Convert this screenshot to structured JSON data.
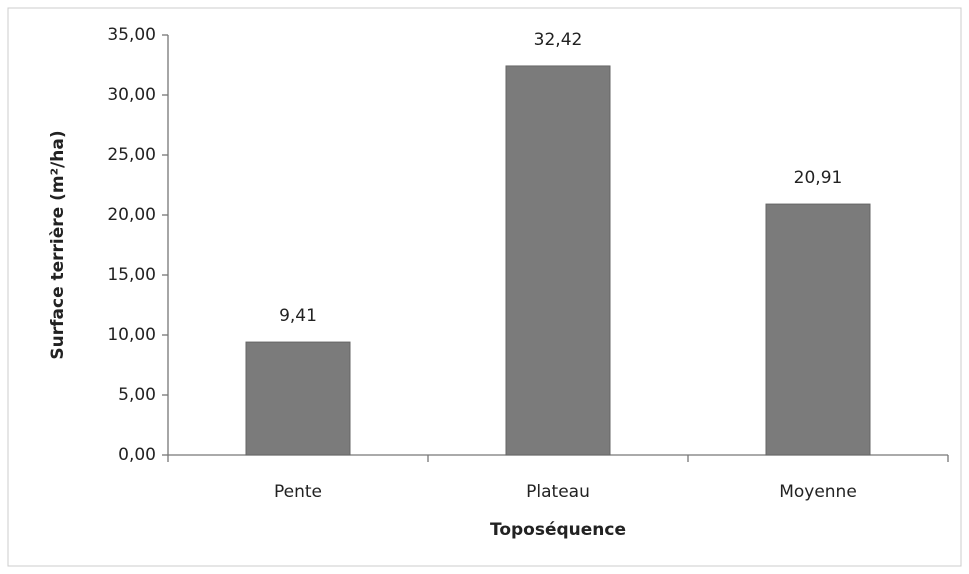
{
  "chart_data": {
    "type": "bar",
    "x_label": "Toposéquence",
    "y_label": "Surface terrière (m²/ha)",
    "categories": [
      "Pente",
      "Plateau",
      "Moyenne"
    ],
    "values": [
      9.41,
      32.42,
      20.91
    ],
    "value_labels": [
      "9,41",
      "32,42",
      "20,91"
    ],
    "color": "#7b7b7b",
    "ylim": [
      0,
      35
    ],
    "yticks": [
      {
        "value": 0,
        "label": "0,00"
      },
      {
        "value": 5,
        "label": "5,00"
      },
      {
        "value": 10,
        "label": "10,00"
      },
      {
        "value": 15,
        "label": "15,00"
      },
      {
        "value": 20,
        "label": "20,00"
      },
      {
        "value": 25,
        "label": "25,00"
      },
      {
        "value": 30,
        "label": "30,00"
      },
      {
        "value": 35,
        "label": "35,00"
      }
    ],
    "grid": false
  }
}
